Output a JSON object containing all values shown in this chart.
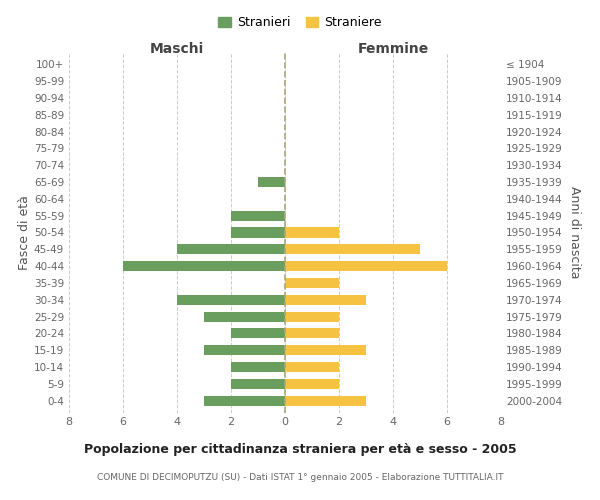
{
  "age_groups": [
    "0-4",
    "5-9",
    "10-14",
    "15-19",
    "20-24",
    "25-29",
    "30-34",
    "35-39",
    "40-44",
    "45-49",
    "50-54",
    "55-59",
    "60-64",
    "65-69",
    "70-74",
    "75-79",
    "80-84",
    "85-89",
    "90-94",
    "95-99",
    "100+"
  ],
  "birth_years": [
    "2000-2004",
    "1995-1999",
    "1990-1994",
    "1985-1989",
    "1980-1984",
    "1975-1979",
    "1970-1974",
    "1965-1969",
    "1960-1964",
    "1955-1959",
    "1950-1954",
    "1945-1949",
    "1940-1944",
    "1935-1939",
    "1930-1934",
    "1925-1929",
    "1920-1924",
    "1915-1919",
    "1910-1914",
    "1905-1909",
    "≤ 1904"
  ],
  "males": [
    3,
    2,
    2,
    3,
    2,
    3,
    4,
    0,
    6,
    4,
    2,
    2,
    0,
    1,
    0,
    0,
    0,
    0,
    0,
    0,
    0
  ],
  "females": [
    3,
    2,
    2,
    3,
    2,
    2,
    3,
    2,
    6,
    5,
    2,
    0,
    0,
    0,
    0,
    0,
    0,
    0,
    0,
    0,
    0
  ],
  "male_color": "#6a9e5e",
  "female_color": "#f5c242",
  "background_color": "#ffffff",
  "grid_color": "#cccccc",
  "title": "Popolazione per cittadinanza straniera per età e sesso - 2005",
  "subtitle": "COMUNE DI DECIMOPUTZU (SU) - Dati ISTAT 1° gennaio 2005 - Elaborazione TUTTITALIA.IT",
  "ylabel_left": "Fasce di età",
  "ylabel_right": "Anni di nascita",
  "xlabel_left": "Maschi",
  "xlabel_right": "Femmine",
  "legend_male": "Stranieri",
  "legend_female": "Straniere",
  "xlim": 8
}
